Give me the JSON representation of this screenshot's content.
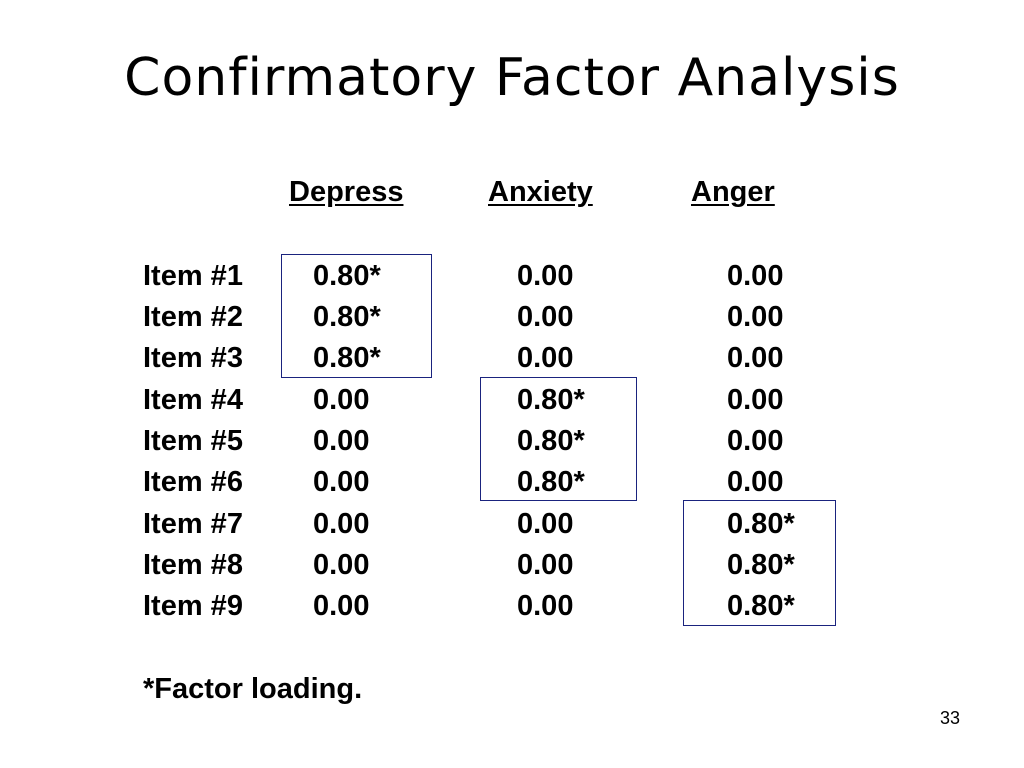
{
  "title": "Confirmatory Factor Analysis",
  "table": {
    "headers": [
      "Depress",
      "Anxiety",
      "Anger"
    ],
    "rows": [
      {
        "label": "Item #1",
        "values": [
          "0.80*",
          "0.00",
          "0.00"
        ]
      },
      {
        "label": "Item #2",
        "values": [
          "0.80*",
          "0.00",
          "0.00"
        ]
      },
      {
        "label": "Item #3",
        "values": [
          "0.80*",
          "0.00",
          "0.00"
        ]
      },
      {
        "label": "Item #4",
        "values": [
          "0.00",
          "0.80*",
          "0.00"
        ]
      },
      {
        "label": "Item #5",
        "values": [
          "0.00",
          "0.80*",
          "0.00"
        ]
      },
      {
        "label": "Item #6",
        "values": [
          "0.00",
          "0.80*",
          "0.00"
        ]
      },
      {
        "label": "Item #7",
        "values": [
          "0.00",
          "0.00",
          "0.80*"
        ]
      },
      {
        "label": "Item #8",
        "values": [
          "0.00",
          "0.00",
          "0.80*"
        ]
      },
      {
        "label": "Item #9",
        "values": [
          "0.00",
          "0.00",
          "0.80*"
        ]
      }
    ]
  },
  "footnote": "*Factor loading.",
  "page_number": "33",
  "colors": {
    "box_border": "#1a237e",
    "text": "#000000",
    "background": "#ffffff"
  }
}
